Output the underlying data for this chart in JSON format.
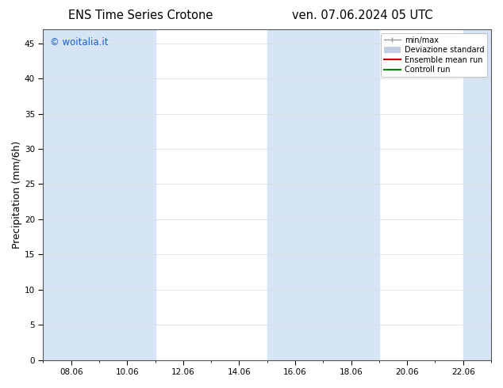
{
  "title_left": "ENS Time Series Crotone",
  "title_right": "ven. 07.06.2024 05 UTC",
  "ylabel": "Precipitation (mm/6h)",
  "watermark": "© woitalia.it",
  "watermark_color": "#1a5fcc",
  "ylim": [
    0,
    47
  ],
  "yticks": [
    0,
    5,
    10,
    15,
    20,
    25,
    30,
    35,
    40,
    45
  ],
  "xtick_labels": [
    "08.06",
    "10.06",
    "12.06",
    "14.06",
    "16.06",
    "18.06",
    "20.06",
    "22.06"
  ],
  "xtick_positions": [
    8,
    10,
    12,
    14,
    16,
    18,
    20,
    22
  ],
  "xlim": [
    7,
    23
  ],
  "shaded_bands": [
    {
      "x_start": 7.0,
      "x_end": 9.0
    },
    {
      "x_start": 9.0,
      "x_end": 11.0
    },
    {
      "x_start": 15.0,
      "x_end": 17.0
    },
    {
      "x_start": 17.0,
      "x_end": 19.0
    },
    {
      "x_start": 22.0,
      "x_end": 23.0
    }
  ],
  "band_color": "#d5e5f5",
  "legend_entries": [
    {
      "label": "min/max",
      "color": "#999999",
      "lw": 1,
      "ls": "-"
    },
    {
      "label": "Deviazione standard",
      "color": "#c0cfe0",
      "lw": 5,
      "ls": "-"
    },
    {
      "label": "Ensemble mean run",
      "color": "#cc0000",
      "lw": 1.5,
      "ls": "-"
    },
    {
      "label": "Controll run",
      "color": "#008800",
      "lw": 1.5,
      "ls": "-"
    }
  ],
  "bg_color": "#ffffff",
  "plot_bg_color": "#ffffff",
  "tick_fontsize": 7.5,
  "label_fontsize": 9,
  "title_fontsize": 10.5
}
